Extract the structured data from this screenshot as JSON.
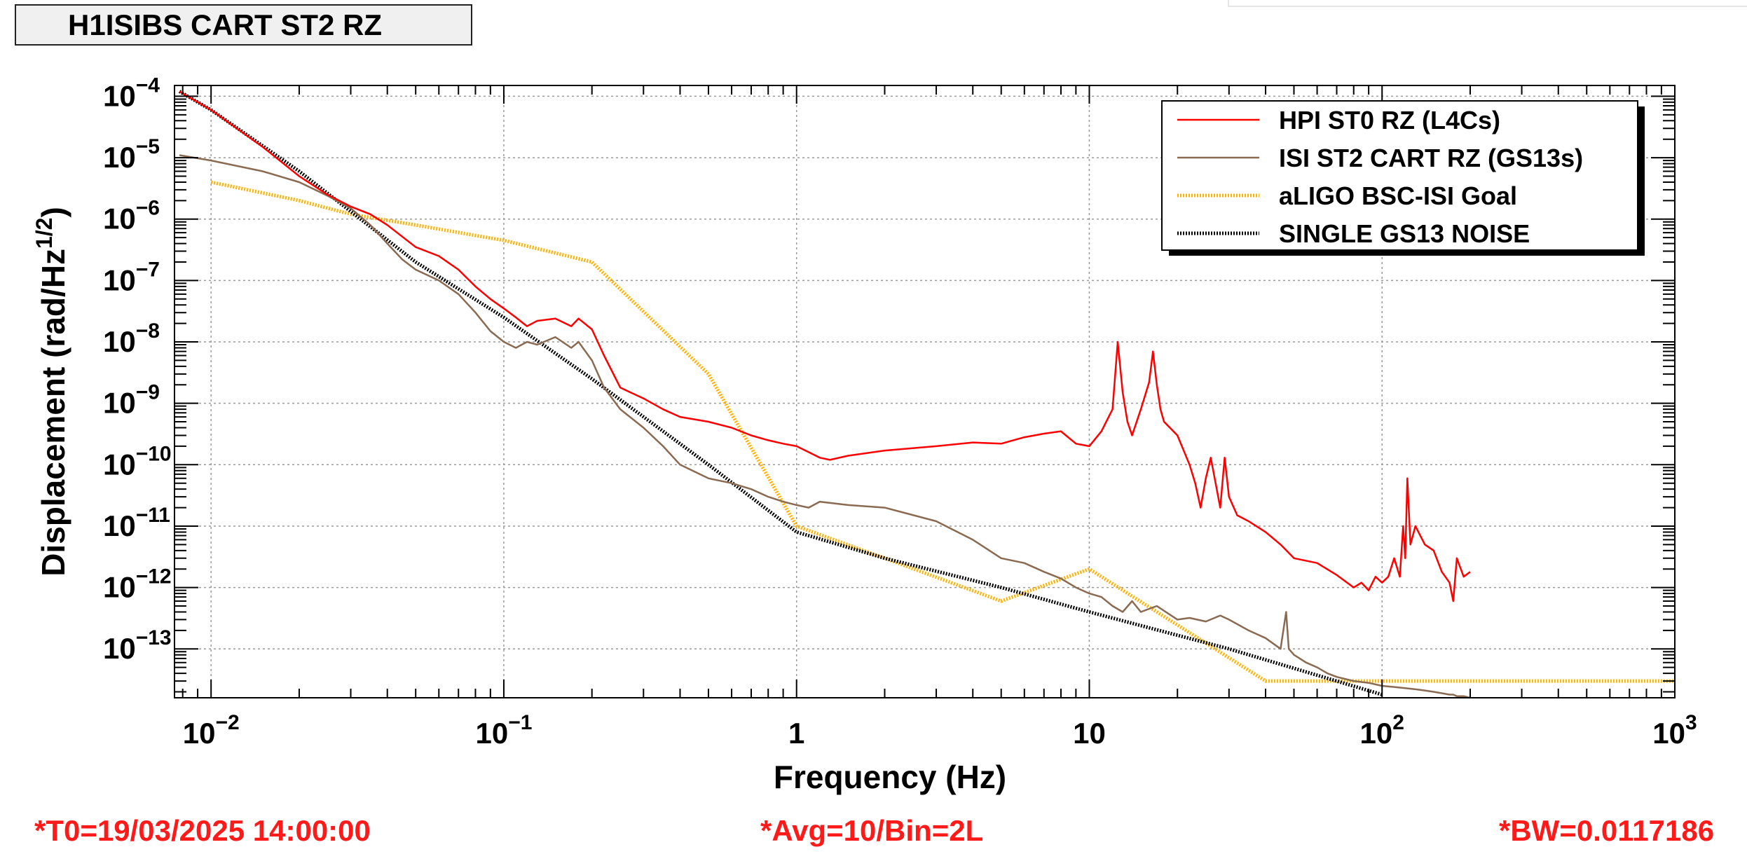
{
  "title": "H1ISIBS CART ST2 RZ",
  "footer": {
    "t0": "*T0=19/03/2025 14:00:00",
    "avg": "*Avg=10/Bin=2L",
    "bw": "*BW=0.0117186"
  },
  "chart_data": {
    "type": "line",
    "xlabel": "Frequency (Hz)",
    "ylabel": "Displacement (rad/Hz^1/2)",
    "xscale": "log",
    "yscale": "log",
    "xlim": [
      0.0075,
      1000
    ],
    "ylim": [
      1.6e-14,
      0.00015
    ],
    "grid": true,
    "legend_position": "top-right",
    "x_ticks": [
      {
        "value": 0.01,
        "base": "10",
        "exp": "−2"
      },
      {
        "value": 0.1,
        "base": "10",
        "exp": "−1"
      },
      {
        "value": 1,
        "base": "1",
        "exp": ""
      },
      {
        "value": 10,
        "base": "10",
        "exp": ""
      },
      {
        "value": 100,
        "base": "10",
        "exp": "2"
      },
      {
        "value": 1000,
        "base": "10",
        "exp": "3"
      }
    ],
    "y_ticks": [
      {
        "value": 0.0001,
        "base": "10",
        "exp": "−4"
      },
      {
        "value": 1e-05,
        "base": "10",
        "exp": "−5"
      },
      {
        "value": 1e-06,
        "base": "10",
        "exp": "−6"
      },
      {
        "value": 1e-07,
        "base": "10",
        "exp": "−7"
      },
      {
        "value": 1e-08,
        "base": "10",
        "exp": "−8"
      },
      {
        "value": 1e-09,
        "base": "10",
        "exp": "−9"
      },
      {
        "value": 1e-10,
        "base": "10",
        "exp": "−10"
      },
      {
        "value": 1e-11,
        "base": "10",
        "exp": "−11"
      },
      {
        "value": 1e-12,
        "base": "10",
        "exp": "−12"
      },
      {
        "value": 1e-13,
        "base": "10",
        "exp": "−13"
      }
    ],
    "series": [
      {
        "name": "HPI ST0 RZ (L4Cs)",
        "color": "#ff0000",
        "style": "solid",
        "x": [
          0.0078,
          0.01,
          0.015,
          0.02,
          0.025,
          0.03,
          0.035,
          0.04,
          0.05,
          0.06,
          0.07,
          0.08,
          0.09,
          0.1,
          0.11,
          0.12,
          0.13,
          0.15,
          0.17,
          0.18,
          0.2,
          0.22,
          0.25,
          0.3,
          0.35,
          0.4,
          0.5,
          0.6,
          0.7,
          0.8,
          0.9,
          1.0,
          1.1,
          1.2,
          1.3,
          1.5,
          2,
          3,
          4,
          5,
          6,
          7,
          8,
          9,
          10,
          11,
          12,
          12.5,
          13,
          13.5,
          14,
          15,
          16,
          16.5,
          17,
          17.5,
          18,
          20,
          22,
          23,
          24,
          25,
          26,
          27,
          28,
          29,
          30,
          32,
          35,
          40,
          45,
          50,
          60,
          70,
          80,
          85,
          90,
          95,
          100,
          105,
          110,
          115,
          118,
          120,
          122,
          125,
          130,
          140,
          150,
          160,
          170,
          175,
          180,
          190,
          200
        ],
        "values": [
          0.00012,
          6e-05,
          1.5e-05,
          5e-06,
          2.5e-06,
          1.6e-06,
          1.2e-06,
          8e-07,
          3.5e-07,
          2.5e-07,
          1.5e-07,
          8e-08,
          5e-08,
          3.5e-08,
          2.5e-08,
          1.8e-08,
          2.2e-08,
          2.4e-08,
          1.8e-08,
          2.4e-08,
          1.6e-08,
          6e-09,
          1.8e-09,
          1.2e-09,
          8e-10,
          6e-10,
          5e-10,
          4e-10,
          3e-10,
          2.5e-10,
          2.2e-10,
          2e-10,
          1.6e-10,
          1.3e-10,
          1.2e-10,
          1.4e-10,
          1.7e-10,
          2e-10,
          2.3e-10,
          2.2e-10,
          2.8e-10,
          3.2e-10,
          3.5e-10,
          2.2e-10,
          2e-10,
          3.5e-10,
          8e-10,
          1e-08,
          1.5e-09,
          5e-10,
          3e-10,
          8e-10,
          2.2e-09,
          7e-09,
          2e-09,
          8e-10,
          5e-10,
          3e-10,
          1e-10,
          5e-11,
          2e-11,
          6e-11,
          1.3e-10,
          5e-11,
          2e-11,
          1.3e-10,
          3e-11,
          1.5e-11,
          1.2e-11,
          8e-12,
          5e-12,
          3e-12,
          2.5e-12,
          1.6e-12,
          1e-12,
          1.2e-12,
          9e-13,
          1.5e-12,
          1.2e-12,
          1.5e-12,
          3e-12,
          1.5e-12,
          1e-11,
          3e-12,
          6e-11,
          5e-12,
          1e-11,
          5e-12,
          4e-12,
          1.8e-12,
          1.2e-12,
          6e-13,
          3e-12,
          1.5e-12,
          1.8e-12
        ]
      },
      {
        "name": "ISI ST2 CART RZ (GS13s)",
        "color": "#8b6a52",
        "style": "solid",
        "x": [
          0.0078,
          0.01,
          0.015,
          0.02,
          0.025,
          0.03,
          0.035,
          0.04,
          0.045,
          0.05,
          0.06,
          0.07,
          0.08,
          0.09,
          0.1,
          0.11,
          0.12,
          0.13,
          0.15,
          0.17,
          0.18,
          0.2,
          0.22,
          0.25,
          0.3,
          0.35,
          0.4,
          0.5,
          0.6,
          0.7,
          0.8,
          0.9,
          1.0,
          1.1,
          1.2,
          1.5,
          2,
          3,
          4,
          5,
          6,
          7,
          8,
          9,
          10,
          11,
          12,
          13,
          14,
          15,
          17,
          20,
          22,
          25,
          28,
          30,
          35,
          40,
          45,
          47,
          48,
          50,
          55,
          60,
          65,
          70,
          80,
          90,
          100,
          110,
          120,
          130,
          140,
          150,
          160,
          170,
          175,
          180,
          190,
          200
        ],
        "values": [
          1.1e-05,
          9e-06,
          6e-06,
          4e-06,
          2.4e-06,
          1.5e-06,
          8e-07,
          4e-07,
          2.2e-07,
          1.5e-07,
          1e-07,
          6e-08,
          3e-08,
          1.5e-08,
          1e-08,
          8e-09,
          1e-08,
          9e-09,
          1.2e-08,
          8e-09,
          1e-08,
          5e-09,
          1.8e-09,
          8e-10,
          4e-10,
          2e-10,
          1e-10,
          6e-11,
          5e-11,
          4e-11,
          3e-11,
          2.5e-11,
          2.2e-11,
          2e-11,
          2.5e-11,
          2.2e-11,
          2e-11,
          1.2e-11,
          6e-12,
          3e-12,
          2.5e-12,
          1.8e-12,
          1.4e-12,
          1e-12,
          8e-13,
          7e-13,
          5e-13,
          4e-13,
          6e-13,
          4e-13,
          5e-13,
          3e-13,
          3.2e-13,
          2.8e-13,
          3.5e-13,
          3e-13,
          2e-13,
          1.5e-13,
          1e-13,
          4e-13,
          1e-13,
          8e-14,
          6e-14,
          5e-14,
          4e-14,
          3.5e-14,
          3e-14,
          2.8e-14,
          2.5e-14,
          2.4e-14,
          2.3e-14,
          2.2e-14,
          2.1e-14,
          2e-14,
          1.9e-14,
          1.8e-14,
          1.8e-14,
          1.7e-14,
          1.7e-14,
          1.6e-14
        ]
      },
      {
        "name": "aLIGO BSC-ISI Goal",
        "color": "#ffb000",
        "style": "dotted",
        "x": [
          0.01,
          0.02,
          0.03,
          0.05,
          0.1,
          0.2,
          0.5,
          1,
          2,
          5,
          10,
          40,
          1000
        ],
        "values": [
          4e-06,
          2e-06,
          1.2e-06,
          8e-07,
          4.5e-07,
          2e-07,
          3e-09,
          1e-11,
          3e-12,
          6e-13,
          2e-12,
          3e-14,
          3e-14
        ]
      },
      {
        "name": "SINGLE GS13 NOISE",
        "color": "#000000",
        "style": "dotted",
        "x": [
          0.0078,
          0.01,
          0.02,
          0.05,
          0.1,
          0.2,
          0.5,
          1,
          2,
          5,
          10,
          30,
          100
        ],
        "values": [
          0.00012,
          6e-05,
          6e-06,
          2e-07,
          2.5e-08,
          2.5e-09,
          1e-10,
          8e-12,
          3e-12,
          1e-12,
          4e-13,
          1e-13,
          1.8e-14
        ]
      }
    ]
  }
}
